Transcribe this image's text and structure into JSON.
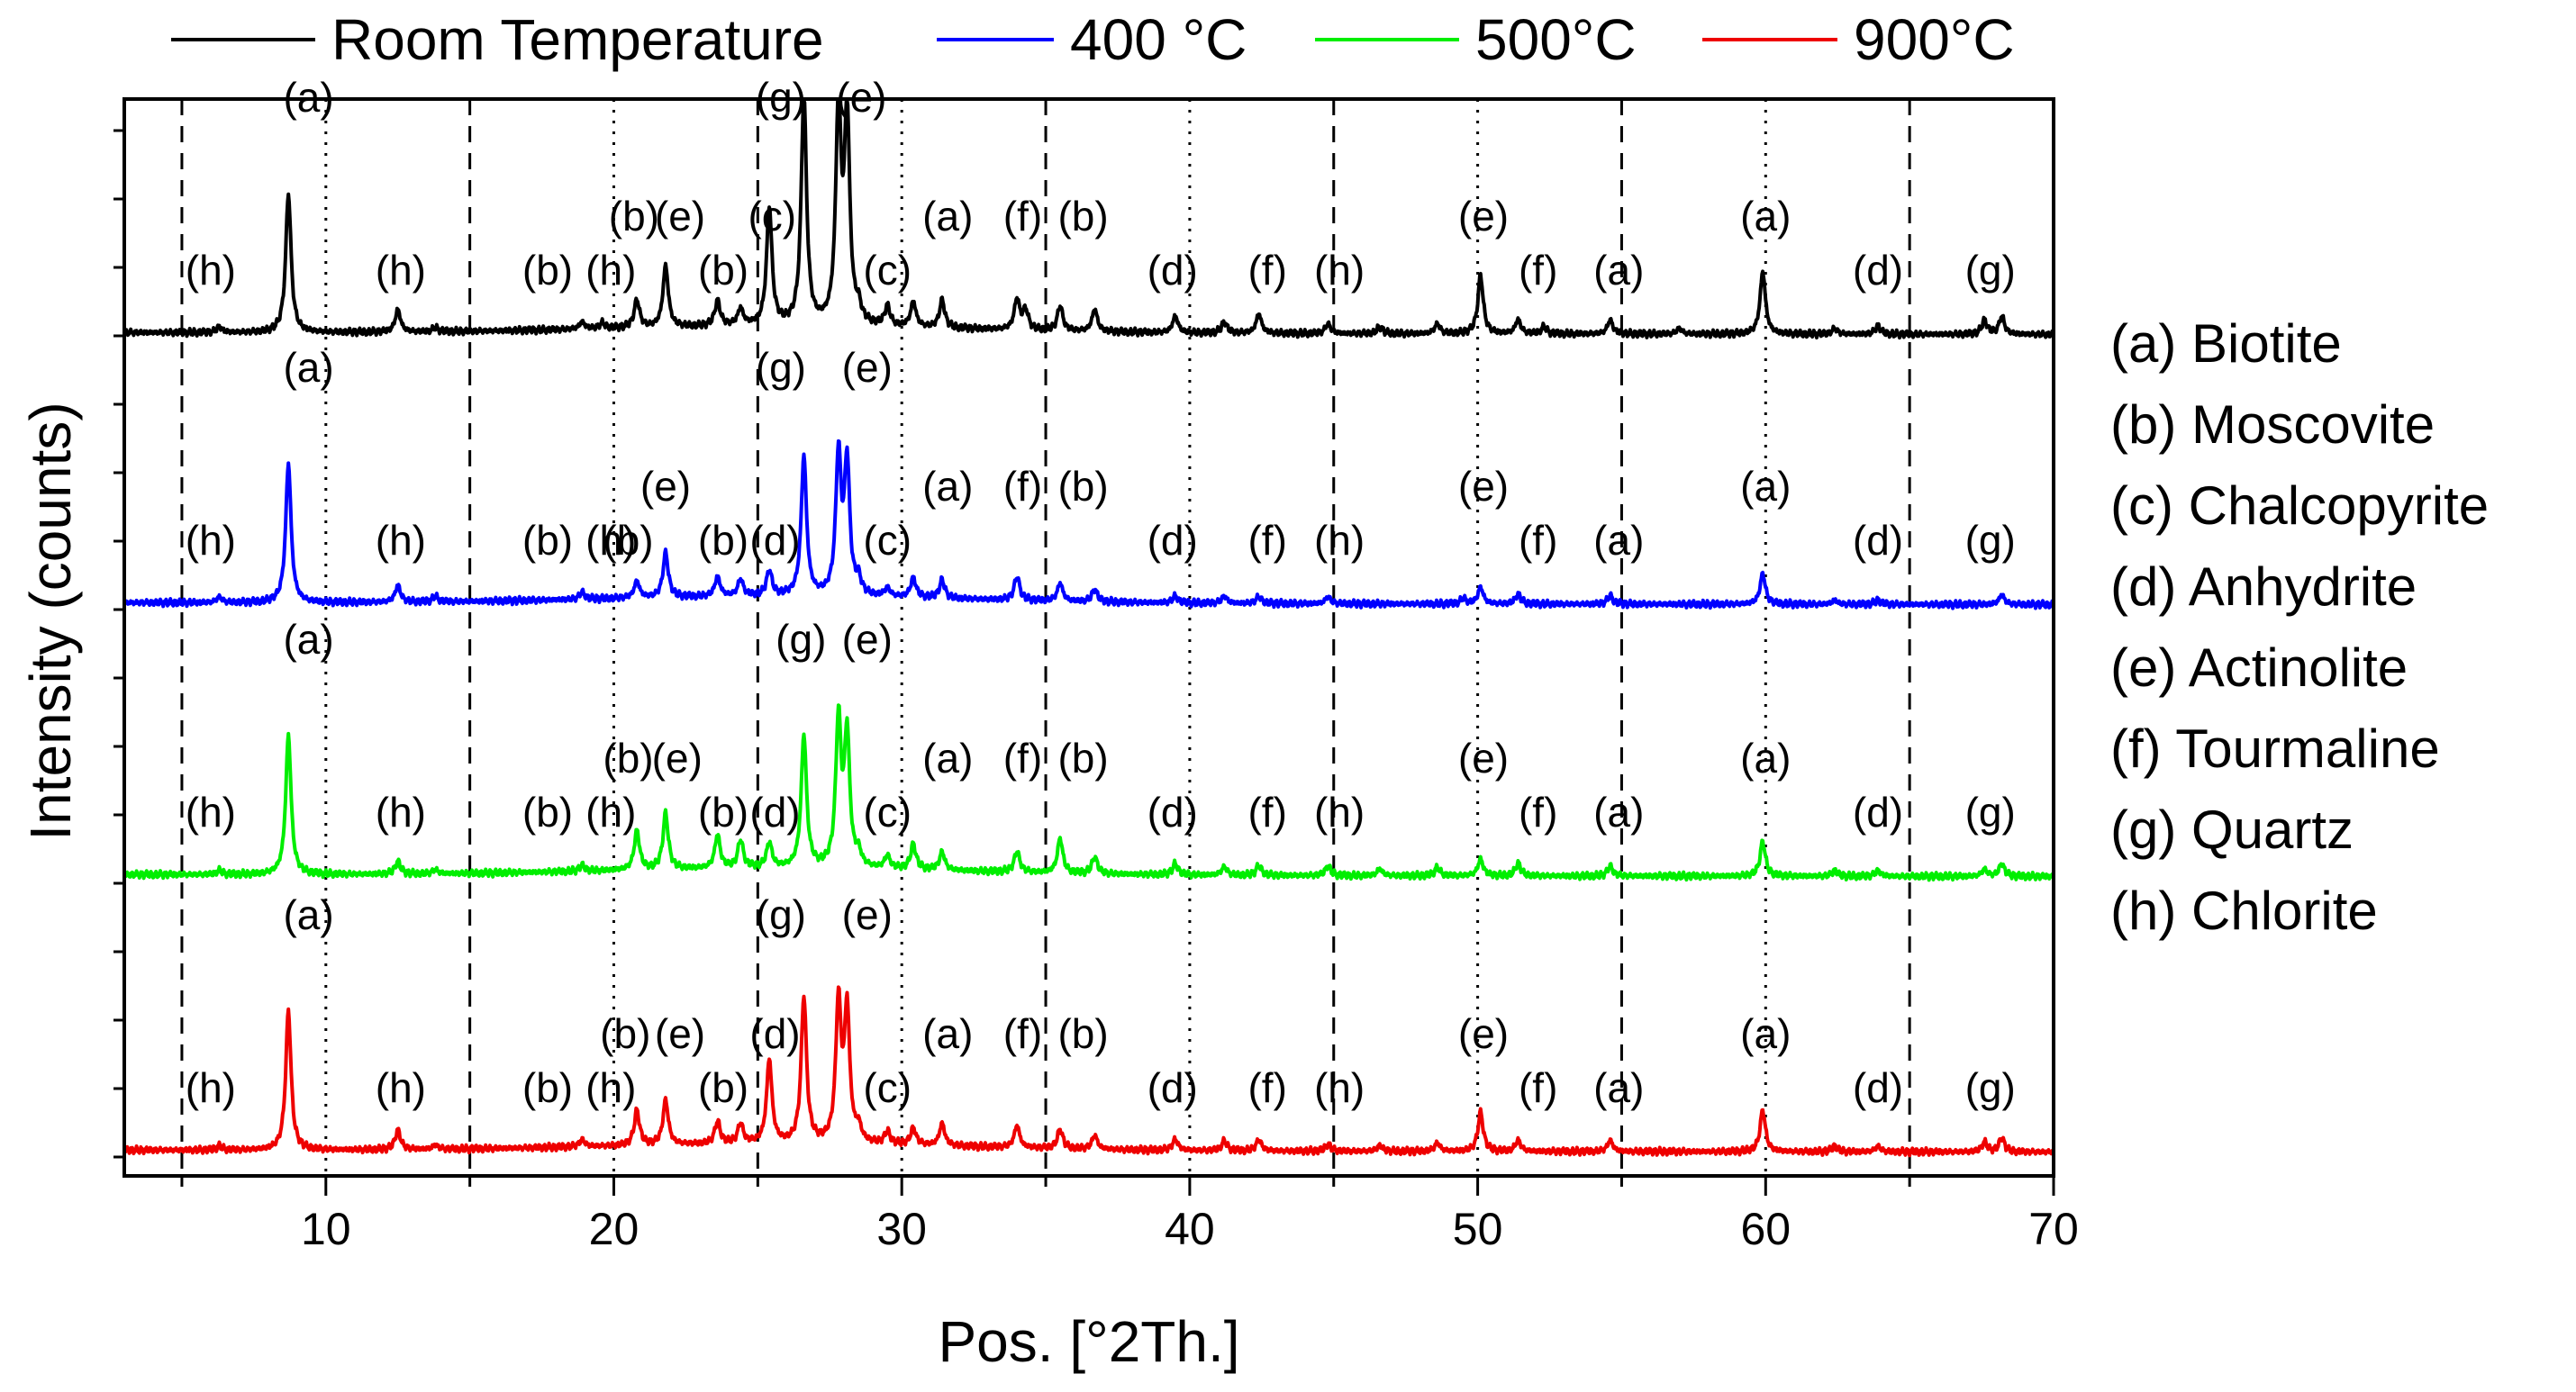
{
  "chart_data": {
    "type": "line",
    "title": "",
    "xlabel": "Pos. [°2Th.]",
    "ylabel": "Intensity (counts)",
    "xlim": [
      3,
      70
    ],
    "xticks": [
      10,
      20,
      30,
      40,
      50,
      60,
      70
    ],
    "grid": false,
    "legend_position": "top",
    "dashed_reference_lines": [
      5,
      15,
      25,
      35,
      45,
      55,
      65
    ],
    "dotted_reference_lines": [
      10,
      20,
      30,
      40,
      50,
      60
    ],
    "series": [
      {
        "name": "Room Temperature",
        "color": "#000000",
        "level": 3,
        "peaks": [
          [
            6.3,
            4
          ],
          [
            8.7,
            100
          ],
          [
            12.5,
            16
          ],
          [
            13.8,
            3
          ],
          [
            18.9,
            5
          ],
          [
            19.6,
            4
          ],
          [
            20.8,
            20
          ],
          [
            21.8,
            44
          ],
          [
            23.6,
            18
          ],
          [
            24.4,
            12
          ],
          [
            25.4,
            85
          ],
          [
            26.6,
            165
          ],
          [
            27.8,
            155
          ],
          [
            28.1,
            150
          ],
          [
            28.5,
            10
          ],
          [
            29.5,
            14
          ],
          [
            30.4,
            18
          ],
          [
            31.4,
            20
          ],
          [
            34.0,
            22
          ],
          [
            34.3,
            14
          ],
          [
            35.5,
            18
          ],
          [
            36.7,
            16
          ],
          [
            39.5,
            12
          ],
          [
            41.2,
            8
          ],
          [
            42.4,
            14
          ],
          [
            44.8,
            7
          ],
          [
            46.6,
            5
          ],
          [
            48.6,
            7
          ],
          [
            50.1,
            42
          ],
          [
            51.4,
            10
          ],
          [
            52.3,
            5
          ],
          [
            54.6,
            10
          ],
          [
            57.0,
            4
          ],
          [
            59.9,
            45
          ],
          [
            62.4,
            4
          ],
          [
            63.9,
            6
          ],
          [
            67.6,
            10
          ],
          [
            68.2,
            13
          ]
        ]
      },
      {
        "name": "400 °C",
        "color": "#0000ff",
        "level": 2,
        "peaks": [
          [
            6.3,
            4
          ],
          [
            8.7,
            100
          ],
          [
            12.5,
            12
          ],
          [
            13.8,
            4
          ],
          [
            18.9,
            5
          ],
          [
            20.8,
            12
          ],
          [
            21.8,
            32
          ],
          [
            23.6,
            14
          ],
          [
            24.4,
            12
          ],
          [
            25.4,
            18
          ],
          [
            26.6,
            100
          ],
          [
            27.8,
            100
          ],
          [
            28.1,
            95
          ],
          [
            28.5,
            10
          ],
          [
            29.5,
            6
          ],
          [
            30.4,
            14
          ],
          [
            31.4,
            13
          ],
          [
            34.0,
            17
          ],
          [
            35.5,
            13
          ],
          [
            36.7,
            9
          ],
          [
            39.5,
            5
          ],
          [
            41.2,
            5
          ],
          [
            42.4,
            5
          ],
          [
            44.8,
            5
          ],
          [
            49.5,
            4
          ],
          [
            50.1,
            12
          ],
          [
            51.4,
            7
          ],
          [
            54.6,
            6
          ],
          [
            59.9,
            22
          ],
          [
            62.4,
            3
          ],
          [
            63.9,
            3
          ],
          [
            68.2,
            7
          ]
        ]
      },
      {
        "name": "500°C",
        "color": "#00ee00",
        "level": 1,
        "peaks": [
          [
            6.3,
            3
          ],
          [
            8.7,
            100
          ],
          [
            12.5,
            9
          ],
          [
            13.8,
            3
          ],
          [
            18.9,
            4
          ],
          [
            20.8,
            28
          ],
          [
            21.8,
            40
          ],
          [
            23.6,
            24
          ],
          [
            24.4,
            20
          ],
          [
            25.4,
            18
          ],
          [
            26.6,
            95
          ],
          [
            27.8,
            105
          ],
          [
            28.1,
            95
          ],
          [
            28.5,
            9
          ],
          [
            29.5,
            9
          ],
          [
            30.4,
            18
          ],
          [
            31.4,
            13
          ],
          [
            34.0,
            15
          ],
          [
            35.5,
            25
          ],
          [
            36.7,
            12
          ],
          [
            39.5,
            8
          ],
          [
            41.2,
            6
          ],
          [
            42.4,
            7
          ],
          [
            44.8,
            7
          ],
          [
            46.6,
            5
          ],
          [
            48.6,
            6
          ],
          [
            50.1,
            12
          ],
          [
            51.4,
            9
          ],
          [
            54.6,
            7
          ],
          [
            59.9,
            25
          ],
          [
            62.4,
            4
          ],
          [
            63.9,
            4
          ],
          [
            67.6,
            5
          ],
          [
            68.2,
            9
          ]
        ]
      },
      {
        "name": "900°C",
        "color": "#ee0000",
        "level": 0,
        "peaks": [
          [
            6.3,
            3
          ],
          [
            8.7,
            100
          ],
          [
            12.5,
            14
          ],
          [
            13.8,
            3
          ],
          [
            18.9,
            5
          ],
          [
            20.8,
            25
          ],
          [
            21.8,
            32
          ],
          [
            23.6,
            16
          ],
          [
            24.4,
            14
          ],
          [
            25.4,
            60
          ],
          [
            26.6,
            105
          ],
          [
            27.8,
            100
          ],
          [
            28.1,
            95
          ],
          [
            28.5,
            10
          ],
          [
            29.5,
            9
          ],
          [
            30.4,
            12
          ],
          [
            31.4,
            16
          ],
          [
            34.0,
            16
          ],
          [
            35.5,
            14
          ],
          [
            36.7,
            10
          ],
          [
            39.5,
            8
          ],
          [
            41.2,
            7
          ],
          [
            42.4,
            8
          ],
          [
            44.8,
            5
          ],
          [
            46.6,
            4
          ],
          [
            48.6,
            6
          ],
          [
            50.1,
            28
          ],
          [
            51.4,
            8
          ],
          [
            54.6,
            8
          ],
          [
            59.9,
            30
          ],
          [
            62.4,
            4
          ],
          [
            63.9,
            4
          ],
          [
            67.6,
            7
          ],
          [
            68.2,
            10
          ]
        ]
      }
    ],
    "peak_labels": [
      {
        "level": 3,
        "items": [
          [
            "(h)",
            6.0,
            "low"
          ],
          [
            "(a)",
            9.4,
            "top"
          ],
          [
            "(h)",
            12.6,
            "low"
          ],
          [
            "(b)",
            17.7,
            "low"
          ],
          [
            "(h)",
            19.9,
            "low"
          ],
          [
            "(b)",
            20.7,
            "mid"
          ],
          [
            "(e)",
            22.3,
            "mid"
          ],
          [
            "(b)",
            23.8,
            "low"
          ],
          [
            "(c)",
            25.5,
            "mid"
          ],
          [
            "(g)",
            25.8,
            "top"
          ],
          [
            "(e)",
            28.6,
            "top"
          ],
          [
            "(c)",
            29.5,
            "low"
          ],
          [
            "(a)",
            31.6,
            "mid"
          ],
          [
            "(f)",
            34.2,
            "mid"
          ],
          [
            "(b)",
            36.3,
            "mid"
          ],
          [
            "(d)",
            39.4,
            "low"
          ],
          [
            "(f)",
            42.7,
            "low"
          ],
          [
            "(h)",
            45.2,
            "low"
          ],
          [
            "(e)",
            50.2,
            "mid"
          ],
          [
            "(f)",
            52.1,
            "low"
          ],
          [
            "(a)",
            54.9,
            "low"
          ],
          [
            "(a)",
            60.0,
            "mid"
          ],
          [
            "(d)",
            63.9,
            "low"
          ],
          [
            "(g)",
            67.8,
            "low"
          ]
        ]
      },
      {
        "level": 2,
        "items": [
          [
            "(h)",
            6.0,
            "low"
          ],
          [
            "(a)",
            9.4,
            "top"
          ],
          [
            "(h)",
            12.6,
            "low"
          ],
          [
            "(b)",
            17.7,
            "low"
          ],
          [
            "(h)",
            19.9,
            "low"
          ],
          [
            "(b)",
            20.5,
            "low"
          ],
          [
            "(e)",
            21.8,
            "mid"
          ],
          [
            "(b)",
            23.8,
            "low"
          ],
          [
            "(d)",
            25.6,
            "low"
          ],
          [
            "(g)",
            25.8,
            "top"
          ],
          [
            "(e)",
            28.8,
            "top"
          ],
          [
            "(c)",
            29.5,
            "low"
          ],
          [
            "(a)",
            31.6,
            "mid"
          ],
          [
            "(f)",
            34.2,
            "mid"
          ],
          [
            "(b)",
            36.3,
            "mid"
          ],
          [
            "(d)",
            39.4,
            "low"
          ],
          [
            "(f)",
            42.7,
            "low"
          ],
          [
            "(h)",
            45.2,
            "low"
          ],
          [
            "(e)",
            50.2,
            "mid"
          ],
          [
            "(f)",
            52.1,
            "low"
          ],
          [
            "(a)",
            54.9,
            "low"
          ],
          [
            "(a)",
            60.0,
            "mid"
          ],
          [
            "(d)",
            63.9,
            "low"
          ],
          [
            "(g)",
            67.8,
            "low"
          ]
        ]
      },
      {
        "level": 1,
        "items": [
          [
            "(h)",
            6.0,
            "low"
          ],
          [
            "(a)",
            9.4,
            "top"
          ],
          [
            "(h)",
            12.6,
            "low"
          ],
          [
            "(b)",
            17.7,
            "low"
          ],
          [
            "(h)",
            19.9,
            "low"
          ],
          [
            "(b)",
            20.5,
            "mid"
          ],
          [
            "(e)",
            22.2,
            "mid"
          ],
          [
            "(b)",
            23.8,
            "low"
          ],
          [
            "(d)",
            25.6,
            "low"
          ],
          [
            "(g)",
            26.5,
            "top"
          ],
          [
            "(e)",
            28.8,
            "top"
          ],
          [
            "(c)",
            29.5,
            "low"
          ],
          [
            "(a)",
            31.6,
            "mid"
          ],
          [
            "(f)",
            34.2,
            "mid"
          ],
          [
            "(b)",
            36.3,
            "mid"
          ],
          [
            "(d)",
            39.4,
            "low"
          ],
          [
            "(f)",
            42.7,
            "low"
          ],
          [
            "(h)",
            45.2,
            "low"
          ],
          [
            "(e)",
            50.2,
            "mid"
          ],
          [
            "(f)",
            52.1,
            "low"
          ],
          [
            "(a)",
            54.9,
            "low"
          ],
          [
            "(a)",
            60.0,
            "mid"
          ],
          [
            "(d)",
            63.9,
            "low"
          ],
          [
            "(g)",
            67.8,
            "low"
          ]
        ]
      },
      {
        "level": 0,
        "items": [
          [
            "(h)",
            6.0,
            "low"
          ],
          [
            "(a)",
            9.4,
            "top"
          ],
          [
            "(h)",
            12.6,
            "low"
          ],
          [
            "(b)",
            17.7,
            "low"
          ],
          [
            "(h)",
            19.9,
            "low"
          ],
          [
            "(b)",
            20.4,
            "mid"
          ],
          [
            "(e)",
            22.3,
            "mid"
          ],
          [
            "(b)",
            23.8,
            "low"
          ],
          [
            "(d)",
            25.6,
            "mid"
          ],
          [
            "(g)",
            25.8,
            "top"
          ],
          [
            "(e)",
            28.8,
            "top"
          ],
          [
            "(c)",
            29.5,
            "low"
          ],
          [
            "(a)",
            31.6,
            "mid"
          ],
          [
            "(f)",
            34.2,
            "mid"
          ],
          [
            "(b)",
            36.3,
            "mid"
          ],
          [
            "(d)",
            39.4,
            "low"
          ],
          [
            "(f)",
            42.7,
            "low"
          ],
          [
            "(h)",
            45.2,
            "low"
          ],
          [
            "(e)",
            50.2,
            "mid"
          ],
          [
            "(f)",
            52.1,
            "low"
          ],
          [
            "(a)",
            54.9,
            "low"
          ],
          [
            "(a)",
            60.0,
            "mid"
          ],
          [
            "(d)",
            63.9,
            "low"
          ],
          [
            "(g)",
            67.8,
            "low"
          ]
        ]
      }
    ],
    "phase_key": [
      "(a) Biotite",
      "(b) Moscovite",
      "(c) Chalcopyrite",
      "(d) Anhydrite",
      "(e) Actinolite",
      "(f) Tourmaline",
      "(g) Quartz",
      "(h) Chlorite"
    ]
  }
}
